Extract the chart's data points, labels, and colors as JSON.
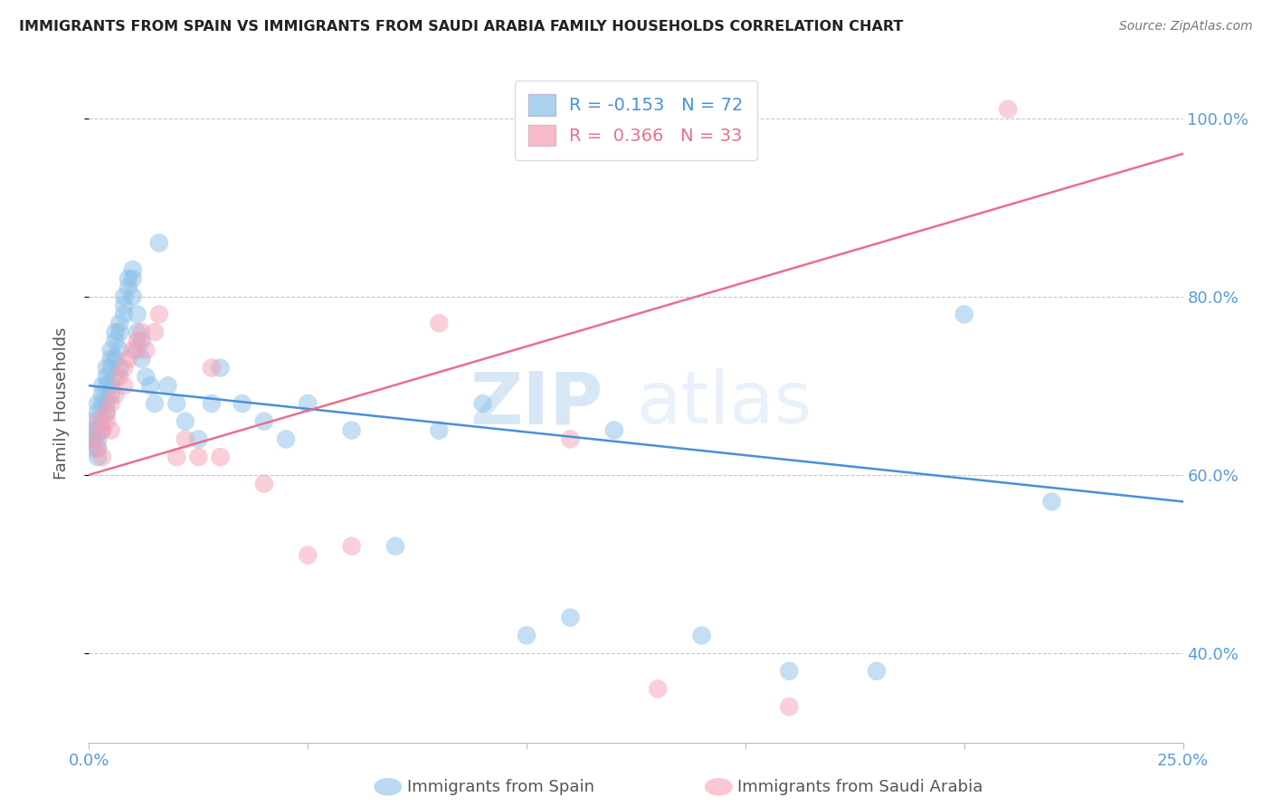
{
  "title": "IMMIGRANTS FROM SPAIN VS IMMIGRANTS FROM SAUDI ARABIA FAMILY HOUSEHOLDS CORRELATION CHART",
  "source": "Source: ZipAtlas.com",
  "ylabel": "Family Households",
  "xlim": [
    0.0,
    0.25
  ],
  "ylim": [
    0.3,
    1.06
  ],
  "yticks": [
    0.4,
    0.6,
    0.8,
    1.0
  ],
  "ytick_labels": [
    "40.0%",
    "60.0%",
    "80.0%",
    "100.0%"
  ],
  "xticks": [
    0.0,
    0.05,
    0.1,
    0.15,
    0.2,
    0.25
  ],
  "xtick_labels": [
    "0.0%",
    "",
    "",
    "",
    "",
    "25.0%"
  ],
  "spain_color": "#8bbfe8",
  "saudi_color": "#f5a0b5",
  "spain_R": -0.153,
  "spain_N": 72,
  "saudi_R": 0.366,
  "saudi_N": 33,
  "spain_trend_x": [
    0.0,
    0.25
  ],
  "spain_trend_y": [
    0.7,
    0.57
  ],
  "saudi_trend_x": [
    0.0,
    0.25
  ],
  "saudi_trend_y": [
    0.6,
    0.96
  ],
  "watermark_zip": "ZIP",
  "watermark_atlas": "atlas",
  "spain_scatter_x": [
    0.001,
    0.001,
    0.001,
    0.001,
    0.002,
    0.002,
    0.002,
    0.002,
    0.002,
    0.002,
    0.003,
    0.003,
    0.003,
    0.003,
    0.003,
    0.004,
    0.004,
    0.004,
    0.004,
    0.004,
    0.005,
    0.005,
    0.005,
    0.005,
    0.005,
    0.006,
    0.006,
    0.006,
    0.006,
    0.007,
    0.007,
    0.007,
    0.007,
    0.008,
    0.008,
    0.008,
    0.009,
    0.009,
    0.01,
    0.01,
    0.01,
    0.011,
    0.011,
    0.011,
    0.012,
    0.012,
    0.013,
    0.014,
    0.015,
    0.016,
    0.018,
    0.02,
    0.022,
    0.025,
    0.028,
    0.03,
    0.035,
    0.04,
    0.045,
    0.05,
    0.06,
    0.07,
    0.08,
    0.09,
    0.1,
    0.11,
    0.12,
    0.14,
    0.16,
    0.18,
    0.2,
    0.22
  ],
  "spain_scatter_y": [
    0.64,
    0.65,
    0.66,
    0.63,
    0.67,
    0.68,
    0.65,
    0.64,
    0.63,
    0.62,
    0.69,
    0.7,
    0.68,
    0.66,
    0.65,
    0.71,
    0.72,
    0.7,
    0.68,
    0.67,
    0.73,
    0.74,
    0.72,
    0.7,
    0.69,
    0.75,
    0.76,
    0.73,
    0.71,
    0.77,
    0.76,
    0.74,
    0.72,
    0.78,
    0.8,
    0.79,
    0.81,
    0.82,
    0.83,
    0.82,
    0.8,
    0.78,
    0.76,
    0.74,
    0.75,
    0.73,
    0.71,
    0.7,
    0.68,
    0.86,
    0.7,
    0.68,
    0.66,
    0.64,
    0.68,
    0.72,
    0.68,
    0.66,
    0.64,
    0.68,
    0.65,
    0.52,
    0.65,
    0.68,
    0.42,
    0.44,
    0.65,
    0.42,
    0.38,
    0.38,
    0.78,
    0.57
  ],
  "saudi_scatter_x": [
    0.001,
    0.002,
    0.002,
    0.003,
    0.003,
    0.004,
    0.004,
    0.005,
    0.005,
    0.006,
    0.007,
    0.008,
    0.008,
    0.009,
    0.01,
    0.011,
    0.012,
    0.013,
    0.015,
    0.016,
    0.02,
    0.022,
    0.025,
    0.028,
    0.03,
    0.04,
    0.05,
    0.06,
    0.08,
    0.11,
    0.13,
    0.16,
    0.21
  ],
  "saudi_scatter_y": [
    0.64,
    0.66,
    0.63,
    0.65,
    0.62,
    0.67,
    0.66,
    0.68,
    0.65,
    0.69,
    0.71,
    0.72,
    0.7,
    0.73,
    0.74,
    0.75,
    0.76,
    0.74,
    0.76,
    0.78,
    0.62,
    0.64,
    0.62,
    0.72,
    0.62,
    0.59,
    0.51,
    0.52,
    0.77,
    0.64,
    0.36,
    0.34,
    1.01
  ],
  "axis_color": "#5b9bd5",
  "grid_color": "#c8c8c8",
  "background_color": "#ffffff"
}
